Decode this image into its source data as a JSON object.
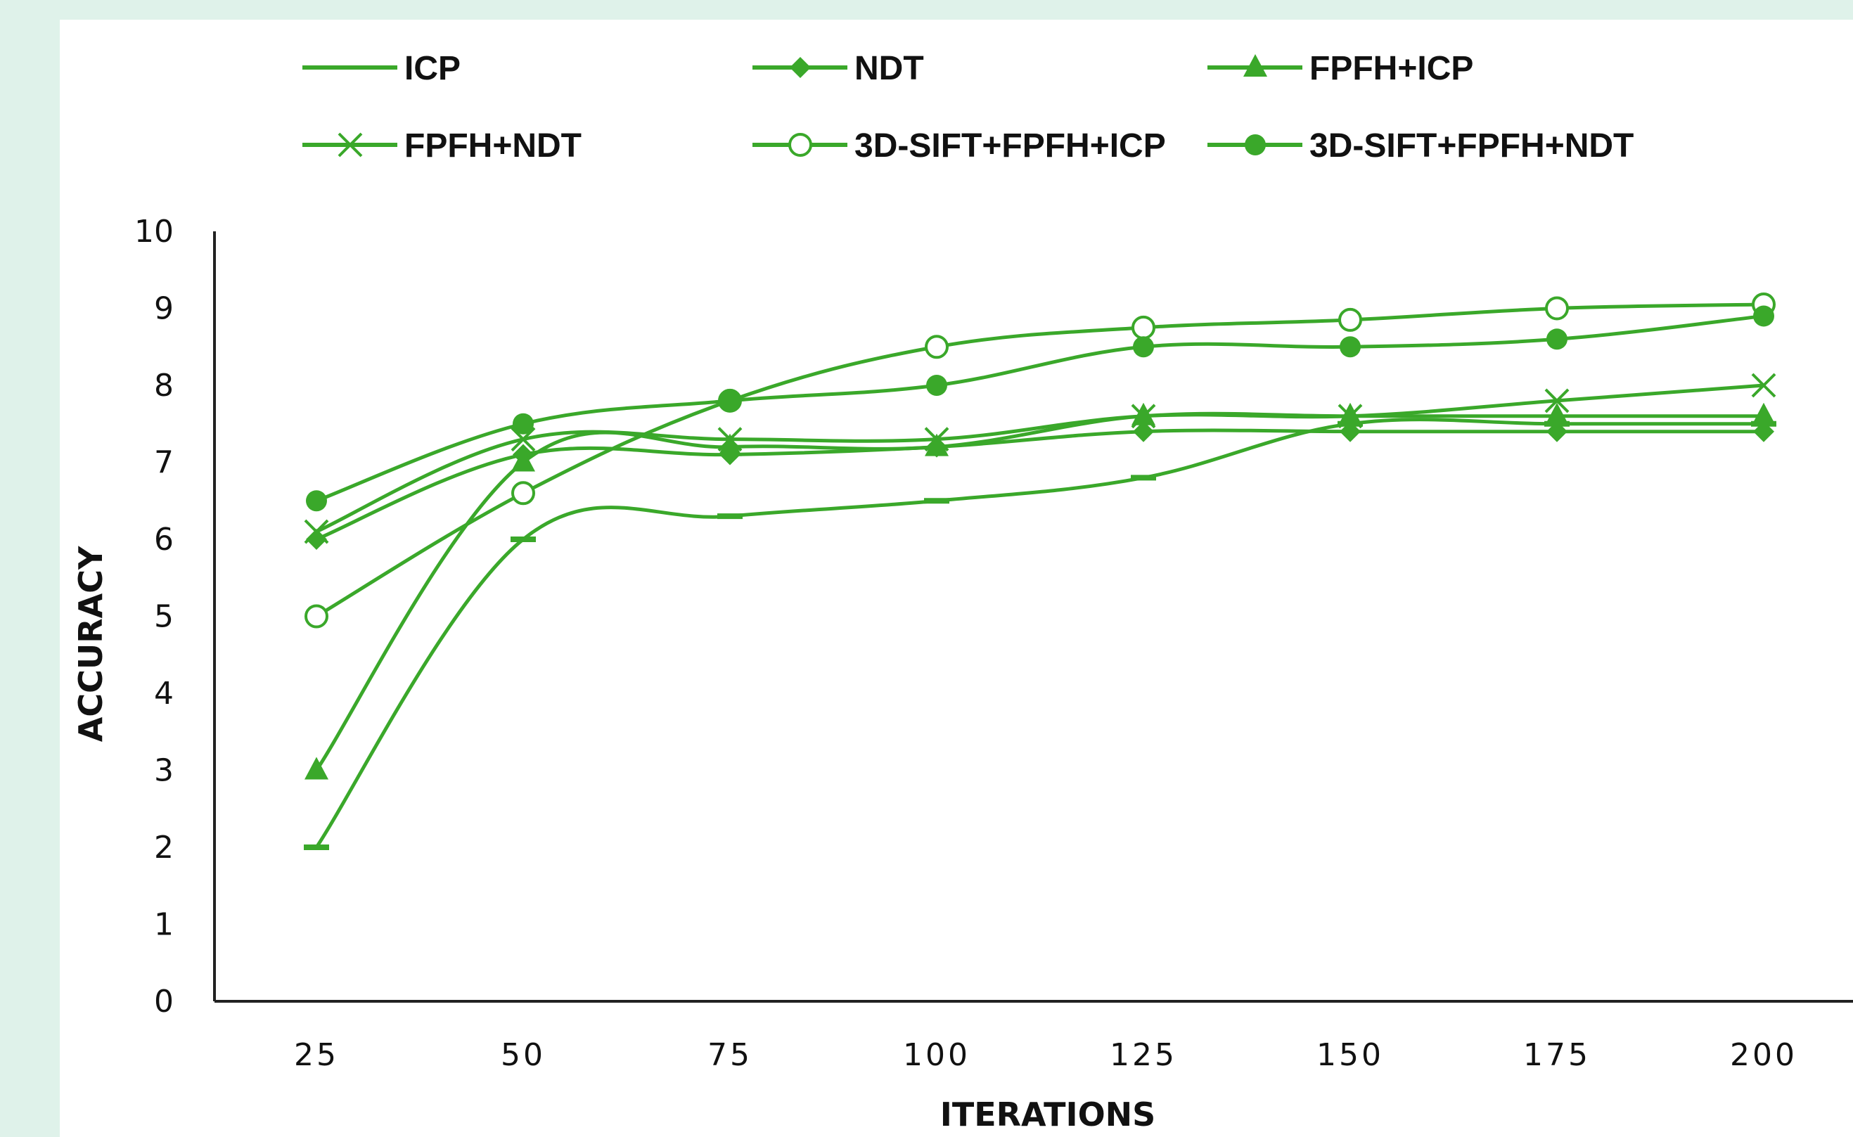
{
  "chart_data": {
    "type": "line",
    "title": "",
    "xlabel": "ITERATIONS",
    "ylabel": "ACCURACY",
    "categories": [
      "25",
      "50",
      "75",
      "100",
      "125",
      "150",
      "175",
      "200"
    ],
    "ylim": [
      0,
      10
    ],
    "yticks": [
      0,
      1,
      2,
      3,
      4,
      5,
      6,
      7,
      8,
      9,
      10
    ],
    "grid": false,
    "legend_position": "top",
    "line_color": "#3aa82a",
    "series": [
      {
        "name": "ICP",
        "marker": "dash",
        "values": [
          2,
          6,
          6.3,
          6.5,
          6.8,
          7.5,
          7.5,
          7.5
        ]
      },
      {
        "name": "NDT",
        "marker": "diamond",
        "values": [
          6,
          7.1,
          7.1,
          7.2,
          7.4,
          7.4,
          7.4,
          7.4
        ]
      },
      {
        "name": "FPFH+ICP",
        "marker": "triangle",
        "values": [
          3,
          7,
          7.2,
          7.2,
          7.6,
          7.6,
          7.6,
          7.6
        ]
      },
      {
        "name": "FPFH+NDT",
        "marker": "x",
        "values": [
          6.1,
          7.3,
          7.3,
          7.3,
          7.6,
          7.6,
          7.8,
          8
        ]
      },
      {
        "name": "3D-SIFT+FPFH+ICP",
        "marker": "circle-open",
        "values": [
          5,
          6.6,
          7.8,
          8.5,
          8.75,
          8.85,
          9,
          9.05
        ]
      },
      {
        "name": "3D-SIFT+FPFH+NDT",
        "marker": "circle-filled",
        "values": [
          6.5,
          7.5,
          7.8,
          8,
          8.5,
          8.5,
          8.6,
          8.9
        ]
      }
    ]
  }
}
